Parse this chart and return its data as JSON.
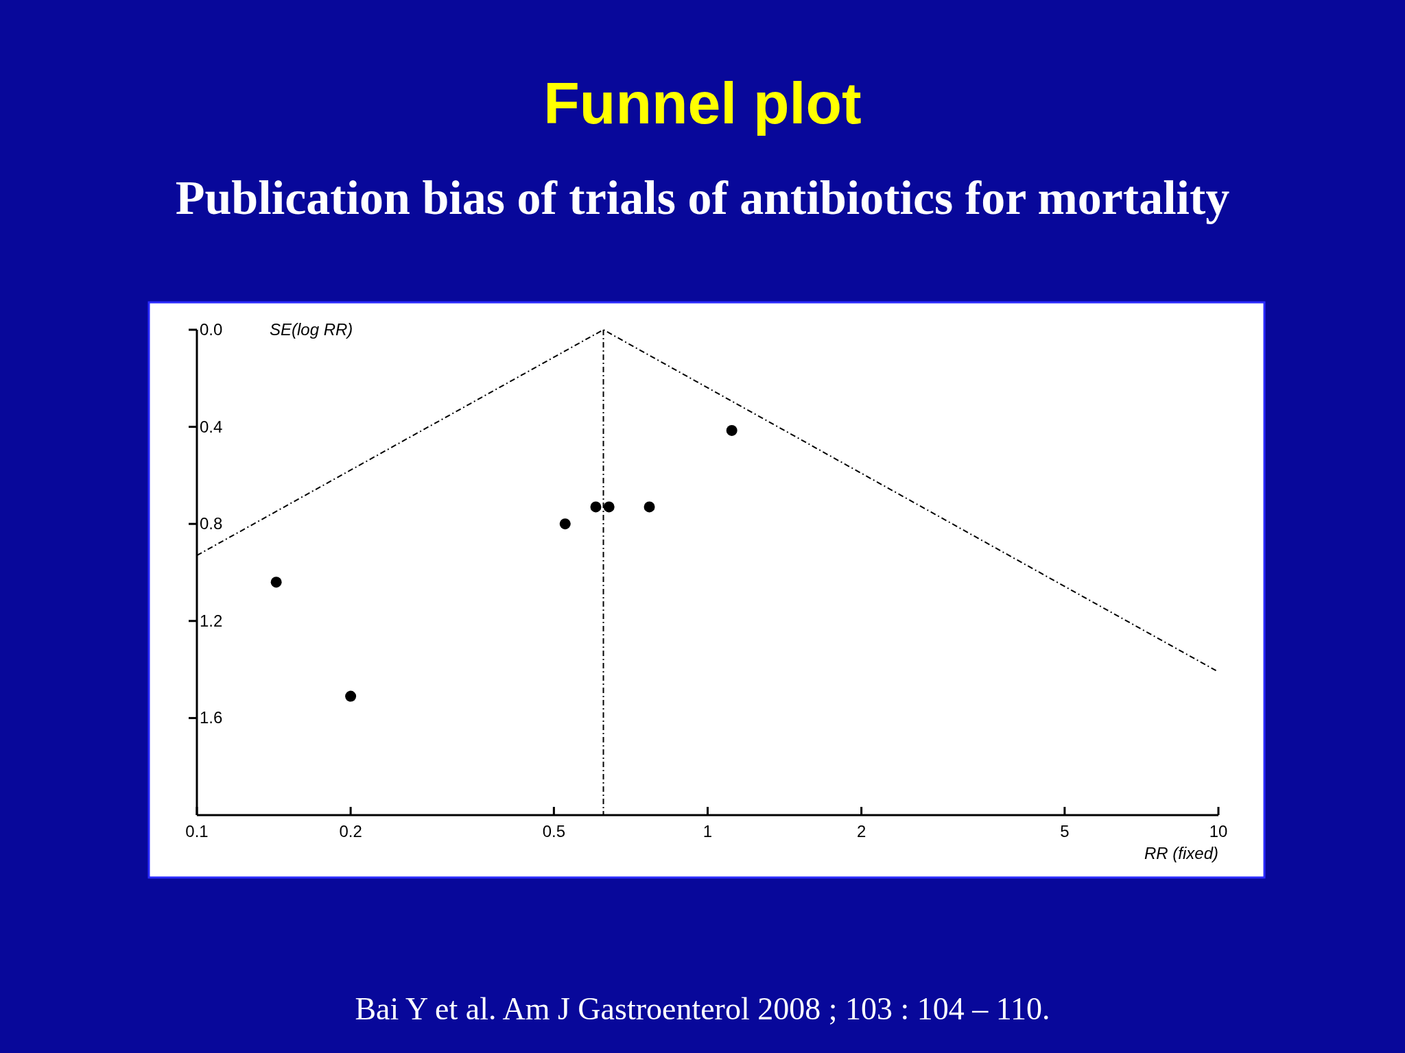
{
  "chart_data": {
    "type": "scatter",
    "title": "Funnel plot",
    "subtitle": "Publication bias of trials of antibiotics for mortality",
    "xlabel": "RR (fixed)",
    "ylabel": "SE(log RR)",
    "log": "x",
    "xlim": [
      0.1,
      10
    ],
    "xticks": [
      0.1,
      0.2,
      0.5,
      1,
      2,
      5,
      10
    ],
    "ylim": [
      2,
      0
    ],
    "yticks": [
      {
        "value": 0,
        "label": "0.0"
      },
      0.4,
      0.8,
      1.2,
      1.6
    ],
    "series": [
      {
        "color": "#000000",
        "marker": "circle",
        "x": [
          0.143,
          0.2,
          0.526,
          0.604,
          0.641,
          0.769,
          1.115
        ],
        "values": [
          1.04,
          1.51,
          0.8,
          0.73,
          0.73,
          0.73,
          0.415
        ]
      },
      {
        "type": "line",
        "color": "#000000",
        "line_style": "dashed",
        "x": [
          0.1,
          0.625,
          10
        ],
        "values": [
          0.93,
          0,
          1.41
        ]
      }
    ],
    "ref_lines": [
      {
        "axis": "x",
        "value": 0.625,
        "color": "#000000",
        "line_style": "dashed"
      }
    ],
    "grid": false,
    "annotations": [
      "Bai Y et al. Am J Gastroenterol 2008 ; 103 : 104 – 110."
    ]
  }
}
